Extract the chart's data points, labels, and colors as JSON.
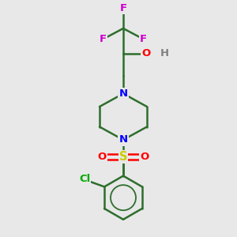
{
  "background_color": "#e8e8e8",
  "atom_colors": {
    "F": "#cc00cc",
    "O": "#ff0000",
    "H": "#808080",
    "N": "#0000ff",
    "S": "#cccc00",
    "Cl": "#00aa00",
    "C": "#2d6e2d"
  },
  "bond_color": "#2d6e2d",
  "figsize": [
    3.0,
    3.0
  ],
  "dpi": 100
}
